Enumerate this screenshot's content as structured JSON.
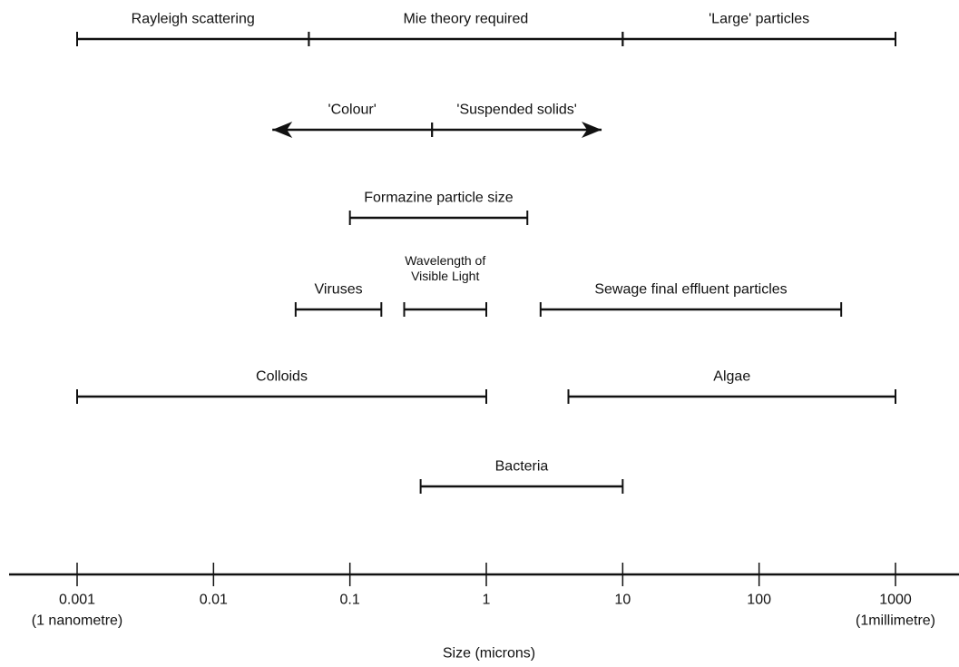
{
  "chart_data": {
    "type": "range",
    "xlabel": "Size (microns)",
    "log_x": true,
    "xlim": [
      0.001,
      1000
    ],
    "xticks": [
      0.001,
      0.01,
      0.1,
      1,
      10,
      100,
      1000
    ],
    "axis_notes": [
      {
        "label": "(1 nanometre)",
        "x": 0.001
      },
      {
        "label": "(1millimetre)",
        "x": 1000
      }
    ],
    "color": "#111111",
    "rows": [
      [
        {
          "name": "Rayleigh scattering",
          "low": 0.001,
          "high": 0.05
        },
        {
          "name": "Mie theory required",
          "low": 0.05,
          "high": 10
        },
        {
          "name": "'Large' particles",
          "low": 10,
          "high": 1000
        }
      ],
      [
        {
          "name": "'Colour'",
          "low": 0.027,
          "high": 0.4,
          "arrow": "left"
        },
        {
          "name": "'Suspended solids'",
          "low": 0.4,
          "high": 7,
          "arrow": "right"
        }
      ],
      [
        {
          "name": "Formazine particle size",
          "low": 0.1,
          "high": 2
        }
      ],
      [
        {
          "name": "Viruses",
          "low": 0.04,
          "high": 0.17
        },
        {
          "name": "Wavelength of\nVisible Light",
          "low": 0.25,
          "high": 1
        },
        {
          "name": "Sewage final effluent particles",
          "low": 2.5,
          "high": 400
        }
      ],
      [
        {
          "name": "Colloids",
          "low": 0.001,
          "high": 1
        },
        {
          "name": "Algae",
          "low": 4,
          "high": 1000
        }
      ],
      [
        {
          "name": "Bacteria",
          "low": 0.33,
          "high": 10
        }
      ]
    ]
  }
}
